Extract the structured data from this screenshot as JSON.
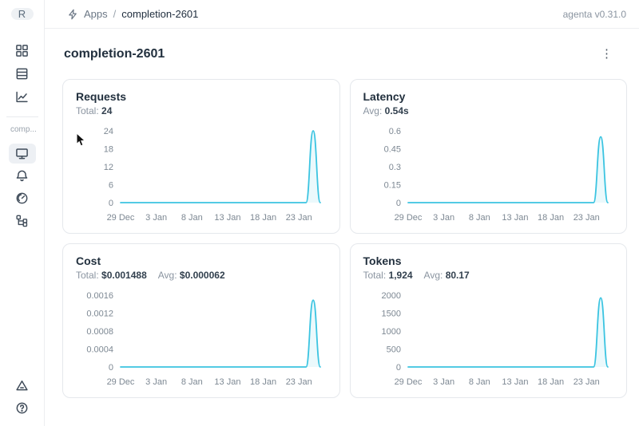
{
  "header": {
    "breadcrumb": {
      "section": "Apps",
      "separator": "/",
      "current": "completion-2601"
    },
    "version": "agenta v0.31.0"
  },
  "sidebar": {
    "avatar_initial": "R",
    "workspace_label": "comp...",
    "top_items": [
      {
        "icon": "grid-icon"
      },
      {
        "icon": "list-icon"
      },
      {
        "icon": "trend-chart-icon"
      }
    ],
    "app_items": [
      {
        "icon": "monitor-icon",
        "selected": true
      },
      {
        "icon": "bell-icon",
        "selected": false
      },
      {
        "icon": "gauge-icon",
        "selected": false
      },
      {
        "icon": "tree-icon",
        "selected": false
      }
    ],
    "bottom_items": [
      {
        "icon": "triangle-icon"
      },
      {
        "icon": "help-icon"
      }
    ]
  },
  "page": {
    "title": "completion-2601"
  },
  "colors": {
    "accent_line": "#3bc4e1",
    "accent_fill": "rgba(59,196,225,0.10)",
    "text_dark": "#22303e",
    "text_gray": "#8a94a0",
    "border": "#e5e8ec"
  },
  "chart_data": [
    {
      "type": "line",
      "title": "Requests",
      "stats": [
        {
          "label": "Total:",
          "value": "24"
        }
      ],
      "ylim": [
        0,
        24
      ],
      "y_ticks": [
        0,
        6,
        12,
        18,
        24
      ],
      "x_ticks": [
        {
          "label": "29 Dec",
          "index": 0
        },
        {
          "label": "3 Jan",
          "index": 5
        },
        {
          "label": "8 Jan",
          "index": 10
        },
        {
          "label": "13 Jan",
          "index": 15
        },
        {
          "label": "18 Jan",
          "index": 20
        },
        {
          "label": "23 Jan",
          "index": 25
        }
      ],
      "values": [
        0,
        0,
        0,
        0,
        0,
        0,
        0,
        0,
        0,
        0,
        0,
        0,
        0,
        0,
        0,
        0,
        0,
        0,
        0,
        0,
        0,
        0,
        0,
        0,
        0,
        0,
        0,
        24,
        0
      ]
    },
    {
      "type": "line",
      "title": "Latency",
      "stats": [
        {
          "label": "Avg:",
          "value": "0.54s"
        }
      ],
      "ylim": [
        0,
        0.6
      ],
      "y_ticks": [
        0,
        0.15,
        0.3,
        0.45,
        0.6
      ],
      "x_ticks": [
        {
          "label": "29 Dec",
          "index": 0
        },
        {
          "label": "3 Jan",
          "index": 5
        },
        {
          "label": "8 Jan",
          "index": 10
        },
        {
          "label": "13 Jan",
          "index": 15
        },
        {
          "label": "18 Jan",
          "index": 20
        },
        {
          "label": "23 Jan",
          "index": 25
        }
      ],
      "values": [
        0,
        0,
        0,
        0,
        0,
        0,
        0,
        0,
        0,
        0,
        0,
        0,
        0,
        0,
        0,
        0,
        0,
        0,
        0,
        0,
        0,
        0,
        0,
        0,
        0,
        0,
        0,
        0.55,
        0
      ]
    },
    {
      "type": "line",
      "title": "Cost",
      "stats": [
        {
          "label": "Total:",
          "value": "$0.001488"
        },
        {
          "label": "Avg:",
          "value": "$0.000062"
        }
      ],
      "ylim": [
        0,
        0.0016
      ],
      "y_ticks": [
        0,
        0.0004,
        0.0008,
        0.0012,
        0.0016
      ],
      "x_ticks": [
        {
          "label": "29 Dec",
          "index": 0
        },
        {
          "label": "3 Jan",
          "index": 5
        },
        {
          "label": "8 Jan",
          "index": 10
        },
        {
          "label": "13 Jan",
          "index": 15
        },
        {
          "label": "18 Jan",
          "index": 20
        },
        {
          "label": "23 Jan",
          "index": 25
        }
      ],
      "values": [
        0,
        0,
        0,
        0,
        0,
        0,
        0,
        0,
        0,
        0,
        0,
        0,
        0,
        0,
        0,
        0,
        0,
        0,
        0,
        0,
        0,
        0,
        0,
        0,
        0,
        0,
        0,
        0.001488,
        0
      ]
    },
    {
      "type": "line",
      "title": "Tokens",
      "stats": [
        {
          "label": "Total:",
          "value": "1,924"
        },
        {
          "label": "Avg:",
          "value": "80.17"
        }
      ],
      "ylim": [
        0,
        2000
      ],
      "y_ticks": [
        0,
        500,
        1000,
        1500,
        2000
      ],
      "x_ticks": [
        {
          "label": "29 Dec",
          "index": 0
        },
        {
          "label": "3 Jan",
          "index": 5
        },
        {
          "label": "8 Jan",
          "index": 10
        },
        {
          "label": "13 Jan",
          "index": 15
        },
        {
          "label": "18 Jan",
          "index": 20
        },
        {
          "label": "23 Jan",
          "index": 25
        }
      ],
      "values": [
        0,
        0,
        0,
        0,
        0,
        0,
        0,
        0,
        0,
        0,
        0,
        0,
        0,
        0,
        0,
        0,
        0,
        0,
        0,
        0,
        0,
        0,
        0,
        0,
        0,
        0,
        0,
        1924,
        0
      ]
    }
  ]
}
